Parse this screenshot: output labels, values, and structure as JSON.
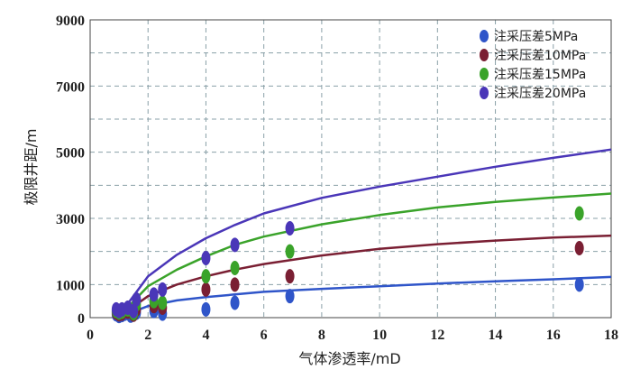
{
  "chart_data": {
    "type": "scatter",
    "xlabel": "气体渗透率/mD",
    "ylabel": "极限井距/m",
    "xlim": [
      0,
      18
    ],
    "ylim": [
      0,
      9000
    ],
    "xticks": [
      0,
      2,
      4,
      6,
      8,
      10,
      12,
      14,
      16,
      18
    ],
    "yticks": [
      0,
      1000,
      3000,
      5000,
      7000,
      9000
    ],
    "grid": true,
    "legend_position": "top-right",
    "series": [
      {
        "name": "注采压差5MPa",
        "color": "#2f55c9",
        "curve": [
          [
            0.8,
            0
          ],
          [
            1.2,
            80
          ],
          [
            2,
            350
          ],
          [
            3,
            520
          ],
          [
            4,
            620
          ],
          [
            5,
            700
          ],
          [
            6,
            780
          ],
          [
            8,
            870
          ],
          [
            10,
            950
          ],
          [
            12,
            1030
          ],
          [
            14,
            1100
          ],
          [
            16,
            1160
          ],
          [
            18,
            1230
          ]
        ],
        "points": [
          [
            0.9,
            100
          ],
          [
            1.0,
            50
          ],
          [
            1.1,
            80
          ],
          [
            1.2,
            120
          ],
          [
            1.4,
            60
          ],
          [
            1.6,
            150
          ],
          [
            2.2,
            200
          ],
          [
            2.5,
            120
          ],
          [
            4.0,
            250
          ],
          [
            5.0,
            450
          ],
          [
            6.9,
            650
          ],
          [
            16.9,
            1000
          ]
        ]
      },
      {
        "name": "注采压差10MPa",
        "color": "#7a1f33",
        "curve": [
          [
            0.8,
            0
          ],
          [
            1.2,
            150
          ],
          [
            2,
            650
          ],
          [
            3,
            1000
          ],
          [
            4,
            1250
          ],
          [
            5,
            1450
          ],
          [
            6,
            1620
          ],
          [
            8,
            1880
          ],
          [
            10,
            2080
          ],
          [
            12,
            2220
          ],
          [
            14,
            2330
          ],
          [
            16,
            2420
          ],
          [
            18,
            2480
          ]
        ],
        "points": [
          [
            0.9,
            150
          ],
          [
            1.0,
            100
          ],
          [
            1.1,
            120
          ],
          [
            1.3,
            180
          ],
          [
            1.5,
            90
          ],
          [
            1.6,
            250
          ],
          [
            2.2,
            350
          ],
          [
            2.5,
            300
          ],
          [
            4.0,
            850
          ],
          [
            5.0,
            1000
          ],
          [
            6.9,
            1250
          ],
          [
            16.9,
            2100
          ]
        ]
      },
      {
        "name": "注采压差15MPa",
        "color": "#3aa32a",
        "curve": [
          [
            0.8,
            0
          ],
          [
            1.2,
            220
          ],
          [
            2,
            950
          ],
          [
            3,
            1450
          ],
          [
            4,
            1850
          ],
          [
            5,
            2200
          ],
          [
            6,
            2450
          ],
          [
            8,
            2820
          ],
          [
            10,
            3100
          ],
          [
            12,
            3330
          ],
          [
            14,
            3500
          ],
          [
            16,
            3630
          ],
          [
            18,
            3750
          ]
        ],
        "points": [
          [
            0.9,
            200
          ],
          [
            1.0,
            150
          ],
          [
            1.1,
            180
          ],
          [
            1.3,
            250
          ],
          [
            1.5,
            130
          ],
          [
            1.6,
            400
          ],
          [
            2.2,
            500
          ],
          [
            2.5,
            450
          ],
          [
            4.0,
            1250
          ],
          [
            5.0,
            1500
          ],
          [
            6.9,
            2000
          ],
          [
            16.9,
            3150
          ]
        ]
      },
      {
        "name": "注采压差20MPa",
        "color": "#4a36b8",
        "curve": [
          [
            0.8,
            0
          ],
          [
            1.2,
            300
          ],
          [
            2,
            1250
          ],
          [
            3,
            1900
          ],
          [
            4,
            2400
          ],
          [
            5,
            2800
          ],
          [
            6,
            3150
          ],
          [
            8,
            3620
          ],
          [
            10,
            3960
          ],
          [
            12,
            4260
          ],
          [
            14,
            4560
          ],
          [
            16,
            4830
          ],
          [
            18,
            5080
          ]
        ],
        "points": [
          [
            0.9,
            250
          ],
          [
            1.0,
            200
          ],
          [
            1.1,
            250
          ],
          [
            1.3,
            300
          ],
          [
            1.5,
            200
          ],
          [
            1.6,
            550
          ],
          [
            2.2,
            700
          ],
          [
            2.5,
            850
          ],
          [
            4.0,
            1800
          ],
          [
            5.0,
            2200
          ],
          [
            6.9,
            2700
          ]
        ]
      }
    ]
  }
}
